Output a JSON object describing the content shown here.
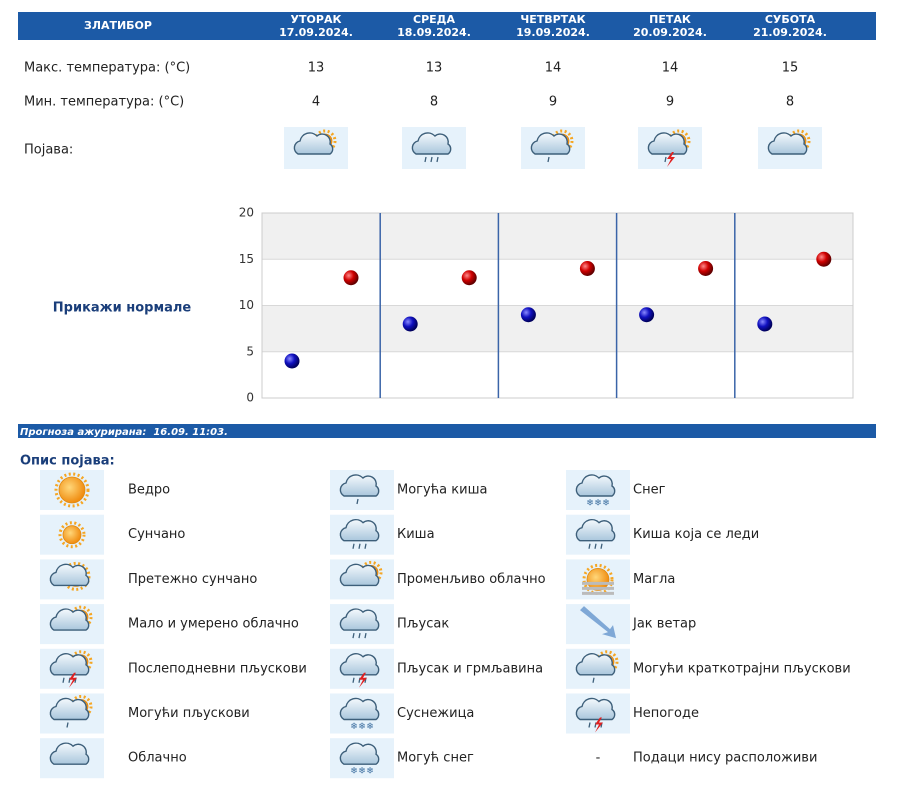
{
  "header": {
    "location": "ЗЛАТИБОР"
  },
  "days": [
    {
      "name": "УТОРАК",
      "date": "17.09.2024."
    },
    {
      "name": "СРЕДА",
      "date": "18.09.2024."
    },
    {
      "name": "ЧЕТВРТАК",
      "date": "19.09.2024."
    },
    {
      "name": "ПЕТАК",
      "date": "20.09.2024."
    },
    {
      "name": "СУБОТА",
      "date": "21.09.2024."
    }
  ],
  "max_temp": {
    "label": "Макс. температура: (°C)",
    "values": [
      13,
      13,
      14,
      14,
      15
    ]
  },
  "min_temp": {
    "label": "Мин. температура: (°C)",
    "values": [
      4,
      8,
      9,
      9,
      8
    ]
  },
  "phenomenon": {
    "label": "Појава:"
  },
  "chart": {
    "normals_link": "Прикажи нормале",
    "ylim": [
      0,
      20
    ],
    "yticks": [
      0,
      5,
      10,
      15,
      20
    ],
    "grid": true
  },
  "update": {
    "text": "Прогноза ажурирана:  16.09. 11:03."
  },
  "legend": {
    "title": "Опис појава:",
    "items": [
      "Ведро",
      "Сунчано",
      "Претежно сунчано",
      "Мало и умерено облачно",
      "Послеподневни пљускови",
      "Могући пљускови",
      "Облачно",
      "Могућа киша",
      "Киша",
      "Променљиво облачно",
      "Пљусак",
      "Пљусак и грмљавина",
      "Суснежица",
      "Могућ снег",
      "Снег",
      "Киша која се леди",
      "Магла",
      "Јак ветар",
      "Могући краткотрајни пљускови",
      "Непогоде",
      "Подаци нису расположиви"
    ],
    "no_data_symbol": "-"
  }
}
